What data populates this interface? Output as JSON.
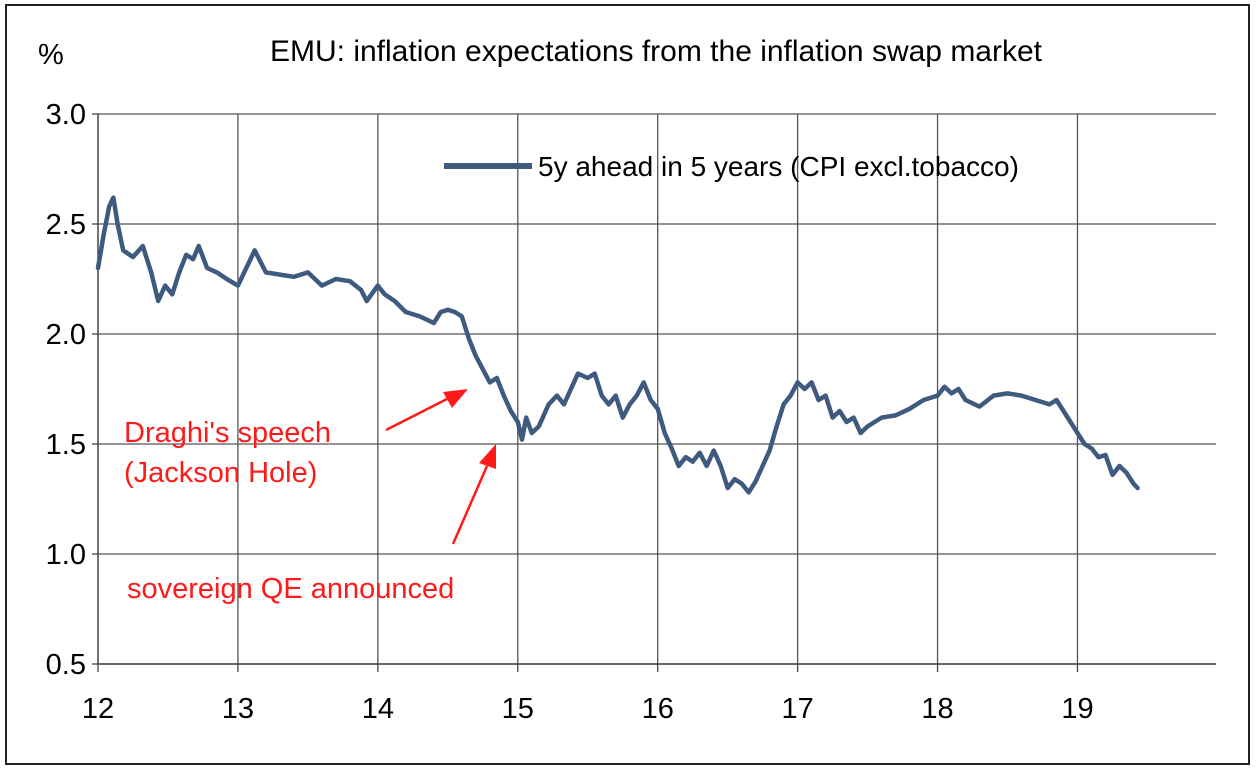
{
  "chart_data": {
    "type": "line",
    "title": "EMU: inflation expectations from the inflation swap market",
    "ylabel": "%",
    "xlabel": "",
    "ylim": [
      0.5,
      3.0
    ],
    "xlim": [
      12,
      19.99
    ],
    "y_ticks": [
      "0.5",
      "1.0",
      "1.5",
      "2.0",
      "2.5",
      "3.0"
    ],
    "x_ticks": [
      "12",
      "13",
      "14",
      "15",
      "16",
      "17",
      "18",
      "19"
    ],
    "grid": true,
    "legend_position": "top-right",
    "series": [
      {
        "name": "5y ahead in 5 years (CPI excl.tobacco)",
        "color": "#3e5a7e",
        "points": [
          [
            12.0,
            2.3
          ],
          [
            12.04,
            2.45
          ],
          [
            12.08,
            2.58
          ],
          [
            12.11,
            2.62
          ],
          [
            12.14,
            2.5
          ],
          [
            12.18,
            2.38
          ],
          [
            12.25,
            2.35
          ],
          [
            12.32,
            2.4
          ],
          [
            12.38,
            2.28
          ],
          [
            12.43,
            2.15
          ],
          [
            12.48,
            2.22
          ],
          [
            12.53,
            2.18
          ],
          [
            12.58,
            2.28
          ],
          [
            12.63,
            2.36
          ],
          [
            12.68,
            2.34
          ],
          [
            12.72,
            2.4
          ],
          [
            12.78,
            2.3
          ],
          [
            12.85,
            2.28
          ],
          [
            12.92,
            2.25
          ],
          [
            13.0,
            2.22
          ],
          [
            13.06,
            2.3
          ],
          [
            13.12,
            2.38
          ],
          [
            13.2,
            2.28
          ],
          [
            13.3,
            2.27
          ],
          [
            13.4,
            2.26
          ],
          [
            13.5,
            2.28
          ],
          [
            13.6,
            2.22
          ],
          [
            13.7,
            2.25
          ],
          [
            13.8,
            2.24
          ],
          [
            13.88,
            2.2
          ],
          [
            13.92,
            2.15
          ],
          [
            14.0,
            2.22
          ],
          [
            14.05,
            2.18
          ],
          [
            14.12,
            2.15
          ],
          [
            14.2,
            2.1
          ],
          [
            14.3,
            2.08
          ],
          [
            14.4,
            2.05
          ],
          [
            14.45,
            2.1
          ],
          [
            14.5,
            2.11
          ],
          [
            14.55,
            2.1
          ],
          [
            14.6,
            2.08
          ],
          [
            14.65,
            1.98
          ],
          [
            14.7,
            1.9
          ],
          [
            14.75,
            1.84
          ],
          [
            14.8,
            1.78
          ],
          [
            14.85,
            1.8
          ],
          [
            14.9,
            1.72
          ],
          [
            14.95,
            1.65
          ],
          [
            15.0,
            1.6
          ],
          [
            15.03,
            1.52
          ],
          [
            15.06,
            1.62
          ],
          [
            15.1,
            1.55
          ],
          [
            15.15,
            1.58
          ],
          [
            15.22,
            1.68
          ],
          [
            15.28,
            1.72
          ],
          [
            15.33,
            1.68
          ],
          [
            15.38,
            1.75
          ],
          [
            15.43,
            1.82
          ],
          [
            15.5,
            1.8
          ],
          [
            15.55,
            1.82
          ],
          [
            15.6,
            1.72
          ],
          [
            15.65,
            1.68
          ],
          [
            15.7,
            1.72
          ],
          [
            15.75,
            1.62
          ],
          [
            15.8,
            1.68
          ],
          [
            15.85,
            1.72
          ],
          [
            15.9,
            1.78
          ],
          [
            15.95,
            1.7
          ],
          [
            16.0,
            1.66
          ],
          [
            16.05,
            1.55
          ],
          [
            16.1,
            1.48
          ],
          [
            16.15,
            1.4
          ],
          [
            16.2,
            1.44
          ],
          [
            16.25,
            1.42
          ],
          [
            16.3,
            1.46
          ],
          [
            16.35,
            1.4
          ],
          [
            16.4,
            1.47
          ],
          [
            16.45,
            1.4
          ],
          [
            16.5,
            1.3
          ],
          [
            16.55,
            1.34
          ],
          [
            16.6,
            1.32
          ],
          [
            16.65,
            1.28
          ],
          [
            16.7,
            1.33
          ],
          [
            16.75,
            1.4
          ],
          [
            16.8,
            1.47
          ],
          [
            16.85,
            1.58
          ],
          [
            16.9,
            1.68
          ],
          [
            16.95,
            1.72
          ],
          [
            17.0,
            1.78
          ],
          [
            17.05,
            1.75
          ],
          [
            17.1,
            1.78
          ],
          [
            17.15,
            1.7
          ],
          [
            17.2,
            1.72
          ],
          [
            17.25,
            1.62
          ],
          [
            17.3,
            1.65
          ],
          [
            17.35,
            1.6
          ],
          [
            17.4,
            1.62
          ],
          [
            17.45,
            1.55
          ],
          [
            17.5,
            1.58
          ],
          [
            17.6,
            1.62
          ],
          [
            17.7,
            1.63
          ],
          [
            17.8,
            1.66
          ],
          [
            17.9,
            1.7
          ],
          [
            18.0,
            1.72
          ],
          [
            18.05,
            1.76
          ],
          [
            18.1,
            1.73
          ],
          [
            18.15,
            1.75
          ],
          [
            18.2,
            1.7
          ],
          [
            18.3,
            1.67
          ],
          [
            18.4,
            1.72
          ],
          [
            18.5,
            1.73
          ],
          [
            18.6,
            1.72
          ],
          [
            18.7,
            1.7
          ],
          [
            18.8,
            1.68
          ],
          [
            18.85,
            1.7
          ],
          [
            18.9,
            1.65
          ],
          [
            19.0,
            1.55
          ],
          [
            19.05,
            1.5
          ],
          [
            19.1,
            1.48
          ],
          [
            19.15,
            1.44
          ],
          [
            19.2,
            1.45
          ],
          [
            19.25,
            1.36
          ],
          [
            19.3,
            1.4
          ],
          [
            19.35,
            1.37
          ],
          [
            19.4,
            1.32
          ],
          [
            19.43,
            1.3
          ]
        ]
      }
    ],
    "annotations": [
      {
        "id": "draghi",
        "lines": [
          "Draghi's speech",
          "(Jackson Hole)"
        ],
        "color": "#ff1a1a",
        "arrow_x": 14.65,
        "arrow_y": 1.75
      },
      {
        "id": "qe",
        "lines": [
          "sovereign QE announced"
        ],
        "color": "#ff1a1a",
        "arrow_x": 14.88,
        "arrow_y": 1.52
      }
    ]
  }
}
